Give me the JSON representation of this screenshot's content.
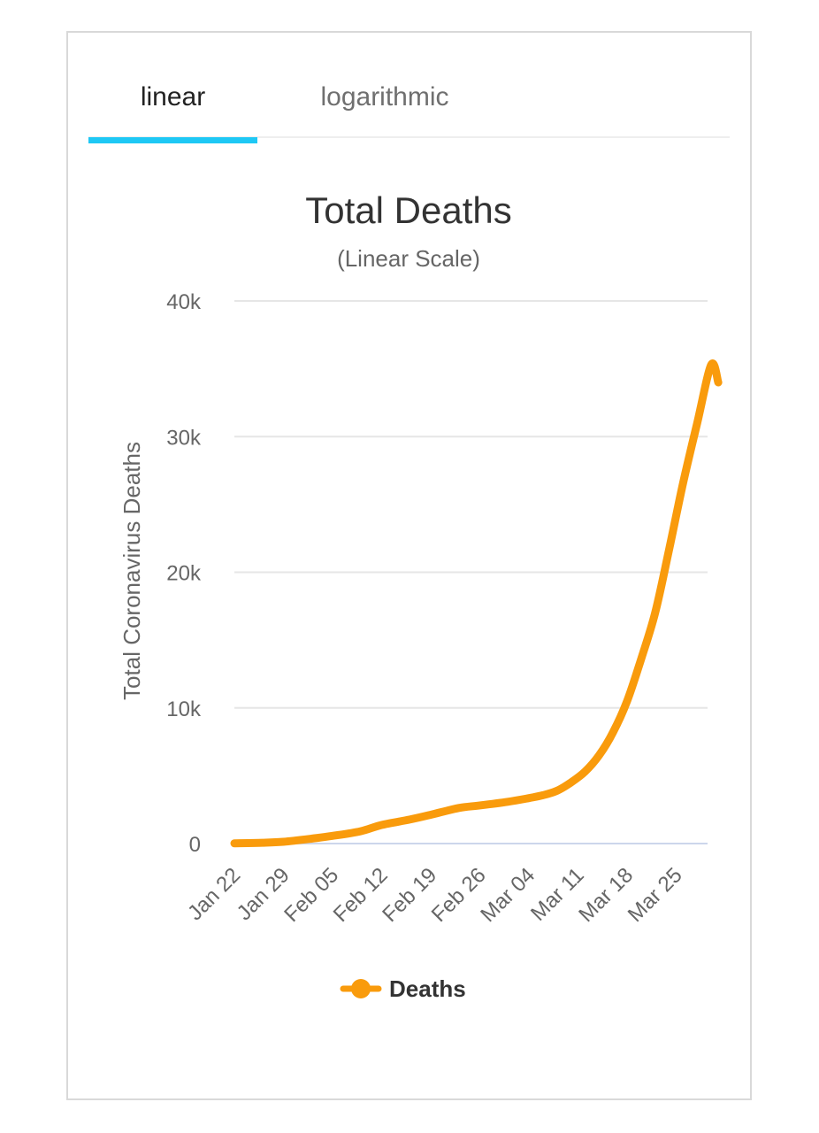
{
  "tabs": [
    {
      "label": "linear",
      "active": true
    },
    {
      "label": "logarithmic",
      "active": false
    }
  ],
  "colors": {
    "accent": "#1ec8f5",
    "series": "#f99b0c",
    "grid": "#e6e6e6",
    "text": "#333333",
    "axis_text": "#666666"
  },
  "chart_data": {
    "type": "line",
    "title": "Total Deaths",
    "subtitle": "(Linear Scale)",
    "ylabel": "Total Coronavirus Deaths",
    "xlabel": "",
    "ylim": [
      0,
      40000
    ],
    "yticks": [
      0,
      10000,
      20000,
      30000,
      40000
    ],
    "ytick_labels": [
      "0",
      "10k",
      "20k",
      "30k",
      "40k"
    ],
    "xticks": [
      "Jan 22",
      "Jan 29",
      "Feb 05",
      "Feb 12",
      "Feb 19",
      "Feb 26",
      "Mar 04",
      "Mar 11",
      "Mar 18",
      "Mar 25"
    ],
    "grid": true,
    "legend": "bottom",
    "x": [
      "Jan 22",
      "Jan 26",
      "Jan 29",
      "Feb 02",
      "Feb 05",
      "Feb 09",
      "Feb 12",
      "Feb 16",
      "Feb 19",
      "Feb 23",
      "Feb 26",
      "Mar 01",
      "Mar 04",
      "Mar 06",
      "Mar 08",
      "Mar 10",
      "Mar 12",
      "Mar 14",
      "Mar 16",
      "Mar 18",
      "Mar 20",
      "Mar 22",
      "Mar 24",
      "Mar 26",
      "Mar 28",
      "Mar 30",
      "Mar 31"
    ],
    "series": [
      {
        "name": "Deaths",
        "values": [
          17,
          56,
          133,
          362,
          565,
          906,
          1370,
          1770,
          2120,
          2620,
          2810,
          3080,
          3350,
          3560,
          3890,
          4500,
          5300,
          6500,
          8200,
          10500,
          13600,
          17000,
          21700,
          26600,
          31000,
          35300,
          34000
        ]
      }
    ]
  }
}
